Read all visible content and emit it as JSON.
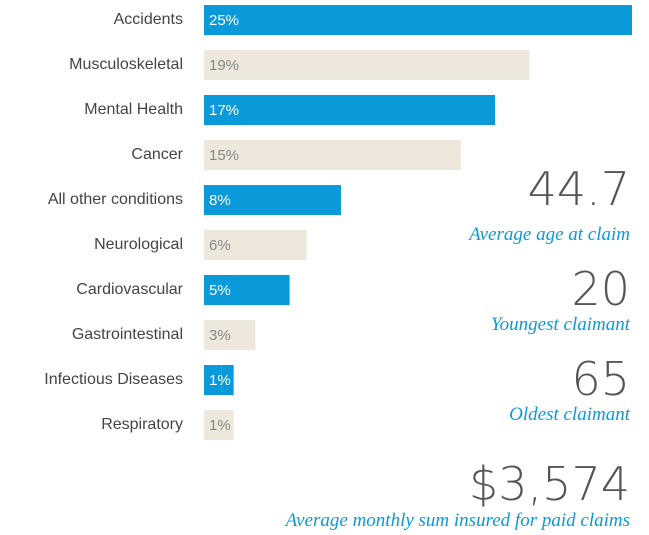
{
  "chart_data": {
    "type": "bar",
    "categories": [
      "Accidents",
      "Musculoskeletal",
      "Mental Health",
      "Cancer",
      "All other conditions",
      "Neurological",
      "Cardiovascular",
      "Gastrointestinal",
      "Infectious Diseases",
      "Respiratory"
    ],
    "values": [
      25,
      19,
      17,
      15,
      8,
      6,
      5,
      3,
      1,
      1
    ],
    "value_labels": [
      "25%",
      "19%",
      "17%",
      "15%",
      "8%",
      "6%",
      "5%",
      "3%",
      "1%",
      "1%"
    ],
    "colors": [
      "#0a9ad9",
      "#eee8dc",
      "#0a9ad9",
      "#eee8dc",
      "#0a9ad9",
      "#eee8dc",
      "#0a9ad9",
      "#eee8dc",
      "#0a9ad9",
      "#eee8dc"
    ],
    "xlim": [
      0,
      25
    ],
    "stats": [
      {
        "value": "44.7",
        "label": "Average age at claim"
      },
      {
        "value": "20",
        "label": "Youngest claimant"
      },
      {
        "value": "65",
        "label": "Oldest claimant"
      },
      {
        "value": "$3,574",
        "label": "Average monthly sum insured for paid claims"
      }
    ]
  }
}
